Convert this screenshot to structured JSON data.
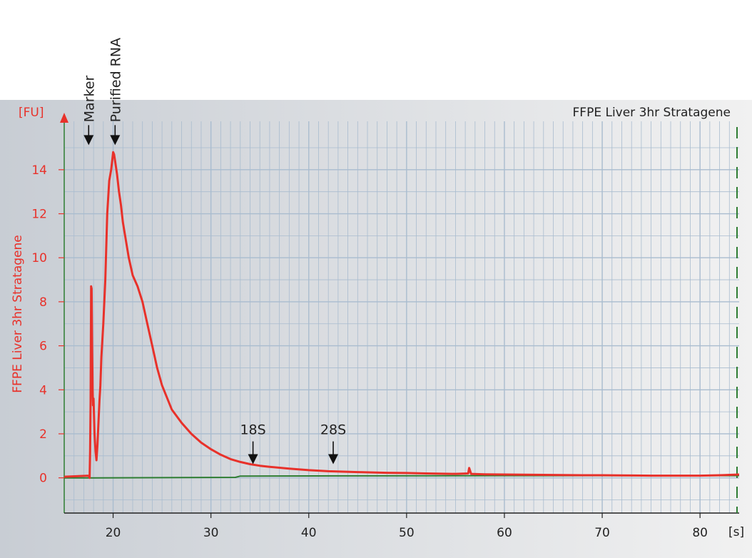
{
  "colors": {
    "trace": "#e8312a",
    "baseline": "#2e7d32",
    "grid": "#a9bccf",
    "axis_text_red": "#e8312a",
    "axis_text_black": "#222222",
    "background_left": "#c8cdd4",
    "background_right": "#f1f1f1"
  },
  "chart_data": {
    "type": "line",
    "title": "FFPE Liver 3hr Stratagene",
    "ylabel": "FFPE Liver 3hr Stratagene",
    "y_unit": "[FU]",
    "x_unit": "[s]",
    "xlim": [
      15,
      84
    ],
    "ylim": [
      -1.6,
      16.2
    ],
    "x_ticks": [
      20,
      30,
      40,
      50,
      60,
      70,
      80
    ],
    "y_ticks": [
      0,
      2,
      4,
      6,
      8,
      10,
      12,
      14
    ],
    "grid": true,
    "series": [
      {
        "name": "FFPE Liver 3hr Stratagene",
        "x": [
          15,
          17.5,
          17.6,
          17.65,
          17.7,
          17.75,
          17.8,
          17.85,
          17.9,
          17.95,
          18,
          18.05,
          18.1,
          18.2,
          18.3,
          18.4,
          18.5,
          18.6,
          18.7,
          18.8,
          19,
          19.2,
          19.4,
          19.6,
          19.8,
          20,
          20.1,
          20.2,
          20.4,
          20.6,
          20.8,
          21,
          21.3,
          21.6,
          22,
          22.5,
          23,
          23.5,
          24,
          24.5,
          25,
          26,
          27,
          28,
          29,
          30,
          31,
          32,
          33,
          34,
          35,
          36,
          38,
          40,
          42,
          45,
          48,
          50,
          52,
          55,
          56.3,
          56.4,
          56.6,
          58,
          60,
          62,
          65,
          68,
          70,
          72,
          75,
          78,
          80,
          82,
          84
        ],
        "values": [
          0.05,
          0.1,
          0.0,
          1.2,
          3.5,
          8.7,
          8.6,
          6.0,
          4.0,
          3.3,
          3.6,
          2.8,
          2.0,
          1.2,
          0.8,
          1.5,
          2.5,
          3.5,
          4.2,
          5.5,
          7.0,
          9.0,
          12.0,
          13.5,
          14.0,
          14.8,
          14.7,
          14.4,
          13.8,
          13.0,
          12.4,
          11.6,
          10.8,
          10.0,
          9.2,
          8.7,
          8.0,
          7.0,
          6.0,
          5.0,
          4.2,
          3.1,
          2.5,
          2.0,
          1.6,
          1.3,
          1.05,
          0.85,
          0.72,
          0.62,
          0.55,
          0.5,
          0.42,
          0.35,
          0.3,
          0.26,
          0.23,
          0.22,
          0.2,
          0.18,
          0.2,
          0.45,
          0.18,
          0.16,
          0.15,
          0.14,
          0.13,
          0.12,
          0.12,
          0.11,
          0.1,
          0.1,
          0.1,
          0.12,
          0.15
        ]
      },
      {
        "name": "",
        "x": [
          15,
          17.5,
          18,
          32.5,
          33,
          60,
          84
        ],
        "values": [
          0.0,
          0.0,
          0.0,
          0.02,
          0.08,
          0.1,
          0.1
        ]
      }
    ],
    "annotations": [
      {
        "label": "Marker",
        "x": 17.5,
        "y": 15.8,
        "orientation": "vertical"
      },
      {
        "label": "Purified RNA",
        "x": 20.2,
        "y": 15.8,
        "orientation": "vertical"
      },
      {
        "label": "18S",
        "x": 34.3,
        "y": 1.3,
        "orientation": "horizontal"
      },
      {
        "label": "28S",
        "x": 42.5,
        "y": 1.3,
        "orientation": "horizontal"
      }
    ]
  }
}
